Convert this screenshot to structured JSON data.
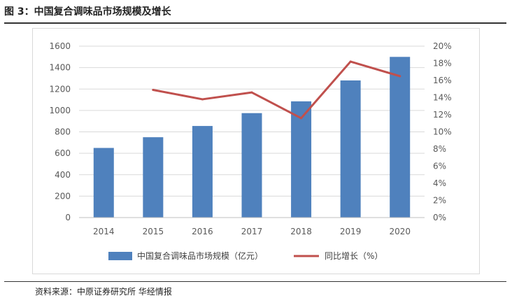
{
  "figure": {
    "title": "图 3：中国复合调味品市场规模及增长",
    "source": "资料来源：中原证券研究所 华经情报"
  },
  "chart_data": {
    "type": "bar",
    "title": "",
    "categories": [
      "2014",
      "2015",
      "2016",
      "2017",
      "2018",
      "2019",
      "2020"
    ],
    "series": [
      {
        "name": "中国复合调味品市场规模（亿元）",
        "type": "bar",
        "axis": "left",
        "values": [
          650,
          750,
          855,
          975,
          1085,
          1280,
          1500
        ],
        "color": "#4f81bd"
      },
      {
        "name": "同比增长（%）",
        "type": "line",
        "axis": "right",
        "values": [
          null,
          14.9,
          13.8,
          14.6,
          11.6,
          18.2,
          16.5
        ],
        "color": "#c0504d"
      }
    ],
    "y_left": {
      "min": 0,
      "max": 1600,
      "step": 200,
      "tick_labels": [
        "0",
        "200",
        "400",
        "600",
        "800",
        "1000",
        "1200",
        "1400",
        "1600"
      ]
    },
    "y_right": {
      "min": 0,
      "max": 20,
      "step": 2,
      "tick_labels": [
        "0%",
        "2%",
        "4%",
        "6%",
        "8%",
        "10%",
        "12%",
        "14%",
        "16%",
        "18%",
        "20%"
      ]
    },
    "grid": true,
    "legend": "bottom"
  }
}
